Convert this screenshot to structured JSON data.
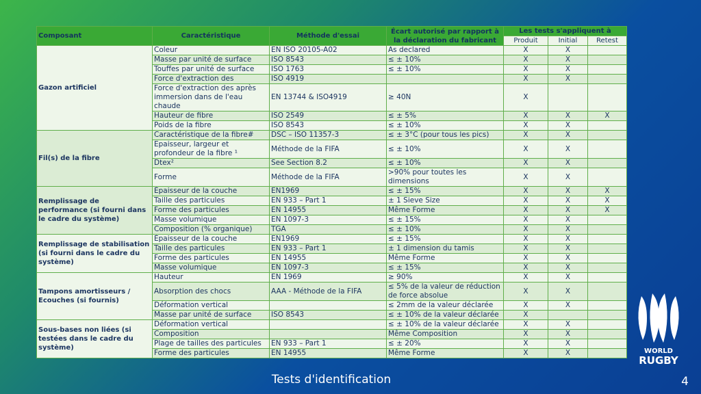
{
  "table": {
    "header": {
      "composant": "Composant",
      "caracteristique": "Caractéristique",
      "methode": "Méthode d'essai",
      "ecart": "Écart autorisé par rapport à la déclaration du fabricant",
      "tests": "Les tests s'appliquent à",
      "produit": "Produit",
      "initial": "Initial",
      "retest": "Retest"
    },
    "groups": [
      {
        "composant": "Gazon artificiel",
        "rows": [
          [
            "Coleur",
            "EN ISO 20105-A02",
            "As declared",
            "X",
            "X",
            null
          ],
          [
            "Masse par unité de surface",
            "ISO 8543",
            "≤ ± 10%",
            "X",
            "X",
            null
          ],
          [
            "Touffes par unité de surface",
            "ISO 1763",
            "≤ ± 10%",
            "X",
            "X",
            null
          ],
          [
            "Force d'extraction des",
            "ISO 4919",
            null,
            "X",
            "X",
            null
          ],
          [
            "Force d'extraction des après immersion dans de l'eau chaude",
            "EN 13744 & ISO4919",
            "≥ 40N",
            "X",
            null,
            null
          ],
          [
            "Hauteur de fibre",
            "ISO 2549",
            "≤ ± 5%",
            "X",
            "X",
            "X"
          ],
          [
            "Poids de la fibre",
            "ISO 8543",
            "≤ ± 10%",
            "X",
            "X",
            null
          ]
        ]
      },
      {
        "composant": "Fil(s) de la fibre",
        "rows": [
          [
            "Caractéristique de la fibre#",
            "DSC – ISO 11357-3",
            "≤ ± 3°C (pour tous les pics)",
            "X",
            "X",
            null
          ],
          [
            "Epaisseur, largeur et profondeur de la fibre ¹",
            "Méthode de la FIFA",
            "≤ ± 10%",
            "X",
            "X",
            null
          ],
          [
            "Dtex²",
            "See Section 8.2",
            "≤ ± 10%",
            "X",
            "X",
            null
          ],
          [
            "Forme",
            "Méthode de la FIFA",
            ">90% pour toutes les dimensions",
            "X",
            "X",
            null
          ]
        ]
      },
      {
        "composant": "Remplissage de performance (si fourni dans le cadre du système)",
        "rows": [
          [
            "Épaisseur de la couche",
            "EN1969",
            "≤ ± 15%",
            "X",
            "X",
            "X"
          ],
          [
            "Taille des particules",
            "EN 933 – Part 1",
            "± 1 Sieve Size",
            "X",
            "X",
            "X"
          ],
          [
            "Forme des particules",
            "EN 14955",
            "Même Forme",
            "X",
            "X",
            "X"
          ],
          [
            "Masse volumique",
            "EN 1097-3",
            "≤ ± 15%",
            "X",
            "X",
            null
          ],
          [
            "Composition (% organique)",
            "TGA",
            "≤ ± 10%",
            "X",
            "X",
            null
          ]
        ]
      },
      {
        "composant": "Remplissage de stabilisation (si fourni dans le cadre du système)",
        "rows": [
          [
            "Épaisseur de la couche",
            "EN1969",
            "≤ ± 15%",
            "X",
            "X",
            null
          ],
          [
            "Taille des particules",
            "EN 933 – Part 1",
            "± 1 dimension du tamis",
            "X",
            "X",
            null
          ],
          [
            "Forme des particules",
            "EN 14955",
            "Même  Forme",
            "X",
            "X",
            null
          ],
          [
            "Masse volumique",
            "EN 1097-3",
            "≤ ± 15%",
            "X",
            "X",
            null
          ]
        ]
      },
      {
        "composant": "Tampons amortisseurs / Ecouches (si fournis)",
        "rows": [
          [
            "Hauteur",
            "EN 1969",
            "≥ 90%",
            "X",
            "X",
            null
          ],
          [
            "Absorption des chocs",
            "AAA - Méthode de la FIFA",
            "≤ 5% de la valeur de réduction de force absolue",
            "X",
            "X",
            null
          ],
          [
            "Déformation vertical",
            null,
            "≤ 2mm de la valeur déclarée",
            "X",
            "X",
            null
          ],
          [
            "Masse par unité de surface",
            "ISO 8543",
            "≤ ± 10% de la valeur déclarée",
            "X",
            null,
            null
          ]
        ]
      },
      {
        "composant": "Sous-bases non liées (si testées dans le cadre du système)",
        "rows": [
          [
            "Déformation vertical",
            null,
            "≤ ± 10% de la valeur déclarée",
            "X",
            "X",
            null
          ],
          [
            "Composition",
            null,
            "Même Composition",
            "X",
            "X",
            null
          ],
          [
            "Plage de tailles des particules",
            "EN 933 – Part 1",
            "≤ ± 20%",
            "X",
            "X",
            null
          ],
          [
            "Forme des particules",
            "EN 14955",
            "Même Forme",
            "X",
            "X",
            null
          ]
        ]
      }
    ]
  },
  "footer": {
    "title": "Tests d'identification",
    "page": "4"
  },
  "logo": {
    "line1": "WORLD",
    "line2": "RUGBY"
  }
}
